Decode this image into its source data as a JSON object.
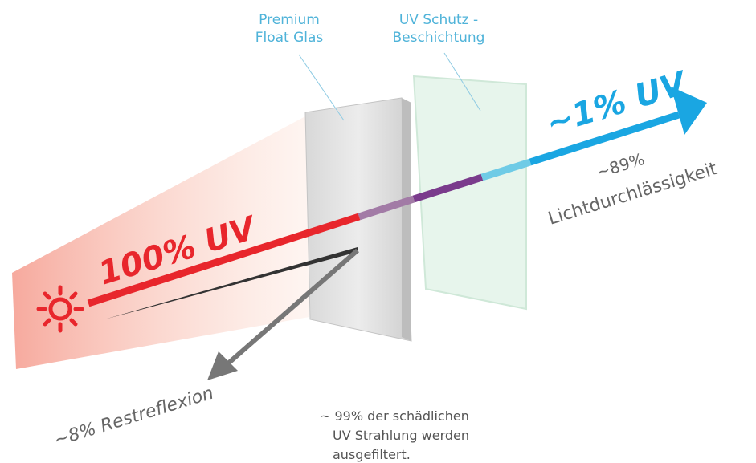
{
  "labels": {
    "glass": [
      "Premium",
      "Float Glas"
    ],
    "coating": [
      "UV Schutz -",
      "Beschichtung"
    ]
  },
  "beam": {
    "incoming": "100% UV",
    "outgoing": "~1% UV"
  },
  "transmission": [
    "~89%",
    "Lichtdurchlässigkeit"
  ],
  "reflection": "~8% Restreflexion",
  "filter_note": [
    "~ 99% der schädlichen",
    "UV Strahlung werden",
    "ausgefiltert."
  ]
}
